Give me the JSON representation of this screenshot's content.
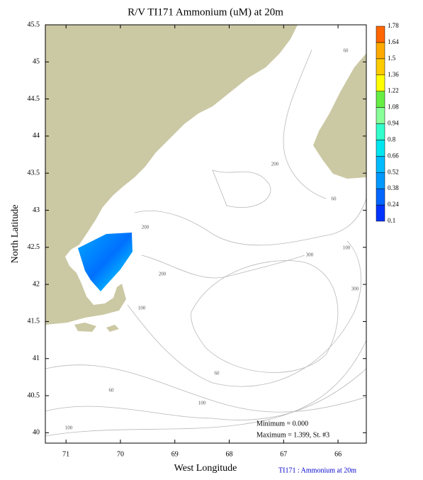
{
  "chart_data": {
    "type": "map",
    "title": "R/V TI171 Ammonium (uM) at 20m",
    "x_label": "West Longitude",
    "y_label": "North Latitude",
    "xlim": [
      71.38,
      65.48
    ],
    "ylim": [
      39.86,
      45.5
    ],
    "xticks": [
      71,
      70,
      69,
      68,
      67,
      66
    ],
    "yticks": [
      40,
      40.5,
      41,
      41.5,
      42,
      42.5,
      43,
      43.5,
      44,
      44.5,
      45,
      45.5
    ],
    "colorbar": {
      "levels": [
        0.1,
        0.24,
        0.38,
        0.52,
        0.66,
        0.8,
        0.94,
        1.08,
        1.22,
        1.36,
        1.5,
        1.64,
        1.78
      ],
      "colors": [
        "#0033ff",
        "#0066ff",
        "#0099ff",
        "#00bbff",
        "#00e6f0",
        "#33ffcc",
        "#88ff99",
        "#66ee44",
        "#ffff00",
        "#ffcc00",
        "#ffaa00",
        "#ff6600"
      ]
    },
    "contour_labels": [
      "60",
      "200",
      "200",
      "100",
      "60",
      "300",
      "100",
      "100",
      "300",
      "60",
      "100",
      "60",
      "200"
    ],
    "minimum": "Minimum = 0.000",
    "maximum": "Maximum = 1.399, St. #3",
    "footer": "TI171 : Ammonium at 20m"
  }
}
